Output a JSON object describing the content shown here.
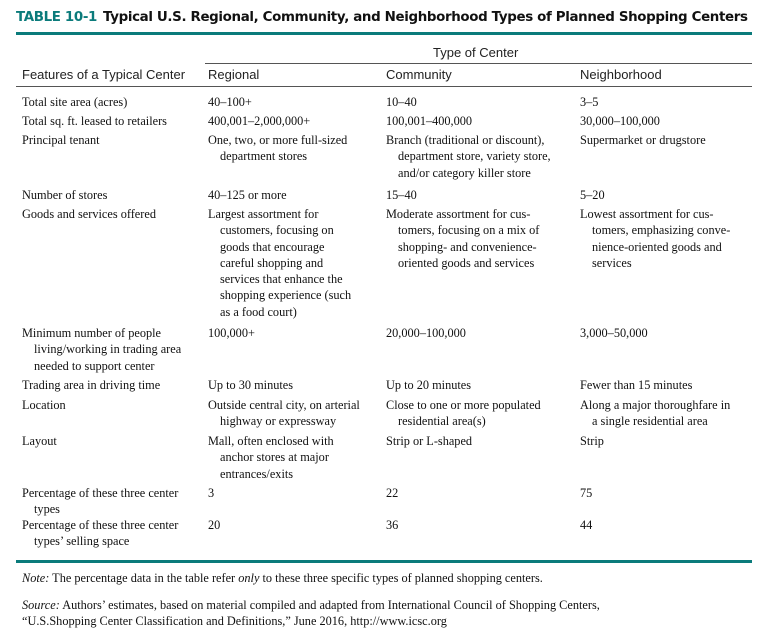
{
  "title": {
    "number": "TABLE 10-1",
    "text": "Typical U.S. Regional, Community, and Neighborhood Types of Planned Shopping Centers"
  },
  "colors": {
    "accent": "#0b7b7b"
  },
  "header": {
    "group": "Type of Center",
    "columns": [
      "Features of a Typical Center",
      "Regional",
      "Community",
      "Neighborhood"
    ]
  },
  "rows": [
    {
      "feature": "Total site area (acres)",
      "regional": "40–100+",
      "community": "10–40",
      "neighborhood": "3–5"
    },
    {
      "feature": "Total sq. ft. leased to retailers",
      "regional": "400,001–2,000,000+",
      "community": "100,001–400,000",
      "neighborhood": "30,000–100,000"
    },
    {
      "feature": "Principal tenant",
      "regional": "One, two, or more full-sized\ndepartment stores",
      "community": "Branch (traditional or discount),\ndepartment store, variety store,\nand/or category killer store",
      "neighborhood": "Supermarket or drugstore"
    },
    {
      "feature": "Number of stores",
      "regional": "40–125 or more",
      "community": "15–40",
      "neighborhood": "5–20"
    },
    {
      "feature": "Goods and services offered",
      "regional": "Largest assortment for\ncustomers, focusing on\ngoods that encourage\ncareful shopping and\nservices that enhance the\nshopping experience (such\nas a food court)",
      "community": "Moderate assortment for cus-\ntomers, focusing on a mix of\nshopping- and convenience-\noriented goods and services",
      "neighborhood": "Lowest assortment for cus-\ntomers, emphasizing conve-\nnience-oriented goods and\nservices"
    },
    {
      "feature": "Minimum number of people\nliving/working in trading area\nneeded to support center",
      "regional": "100,000+",
      "community": "20,000–100,000",
      "neighborhood": "3,000–50,000"
    },
    {
      "feature": "Trading area in driving time",
      "regional": "Up to 30 minutes",
      "community": "Up to 20 minutes",
      "neighborhood": "Fewer than 15 minutes"
    },
    {
      "feature": "Location",
      "regional": "Outside central city, on arterial\nhighway or expressway",
      "community": "Close to one or more populated\nresidential area(s)",
      "neighborhood": "Along a major thoroughfare in\na single residential area"
    },
    {
      "feature": "Layout",
      "regional": "Mall, often enclosed with\nanchor stores at major\nentrances/exits",
      "community": "Strip or L-shaped",
      "neighborhood": "Strip"
    },
    {
      "feature": "Percentage of these three center\ntypes",
      "regional": "3",
      "community": "22",
      "neighborhood": "75"
    },
    {
      "feature": "Percentage of these three center\ntypes’ selling space",
      "regional": "20",
      "community": "36",
      "neighborhood": "44"
    }
  ],
  "note": {
    "label": "Note:",
    "pre": " The percentage data in the table refer ",
    "em": "only",
    "post": " to these three specific types of planned shopping centers."
  },
  "source": {
    "label": "Source:",
    "text": " Authors’ estimates, based on material compiled and adapted from International Council of Shopping Centers,\n“U.S.Shopping Center Classification and Definitions,” June 2016, http://www.icsc.org"
  }
}
